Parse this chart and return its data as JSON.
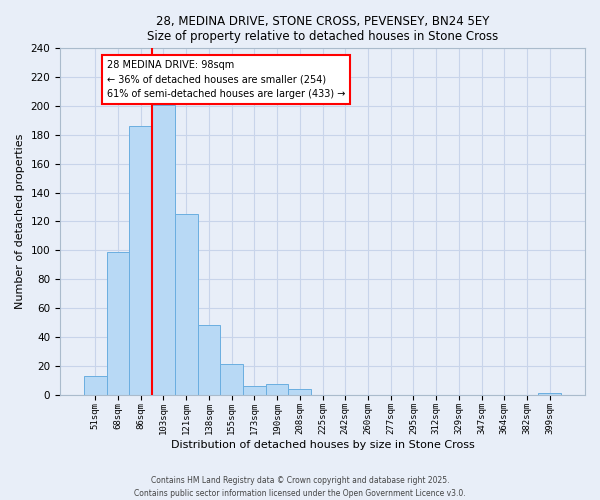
{
  "title": "28, MEDINA DRIVE, STONE CROSS, PEVENSEY, BN24 5EY",
  "subtitle": "Size of property relative to detached houses in Stone Cross",
  "xlabel": "Distribution of detached houses by size in Stone Cross",
  "ylabel": "Number of detached properties",
  "bar_labels": [
    "51sqm",
    "68sqm",
    "86sqm",
    "103sqm",
    "121sqm",
    "138sqm",
    "155sqm",
    "173sqm",
    "190sqm",
    "208sqm",
    "225sqm",
    "242sqm",
    "260sqm",
    "277sqm",
    "295sqm",
    "312sqm",
    "329sqm",
    "347sqm",
    "364sqm",
    "382sqm",
    "399sqm"
  ],
  "bar_values": [
    13,
    99,
    186,
    201,
    125,
    48,
    21,
    6,
    7,
    4,
    0,
    0,
    0,
    0,
    0,
    0,
    0,
    0,
    0,
    0,
    1
  ],
  "bar_color": "#b8d9f5",
  "bar_edge_color": "#6aaee0",
  "vline_color": "red",
  "annotation_text": "28 MEDINA DRIVE: 98sqm\n← 36% of detached houses are smaller (254)\n61% of semi-detached houses are larger (433) →",
  "annotation_box_color": "white",
  "annotation_box_edge": "red",
  "ylim": [
    0,
    240
  ],
  "yticks": [
    0,
    20,
    40,
    60,
    80,
    100,
    120,
    140,
    160,
    180,
    200,
    220,
    240
  ],
  "footer_line1": "Contains HM Land Registry data © Crown copyright and database right 2025.",
  "footer_line2": "Contains public sector information licensed under the Open Government Licence v3.0.",
  "bg_color": "#e8eef8",
  "grid_color": "#c8d4ea"
}
